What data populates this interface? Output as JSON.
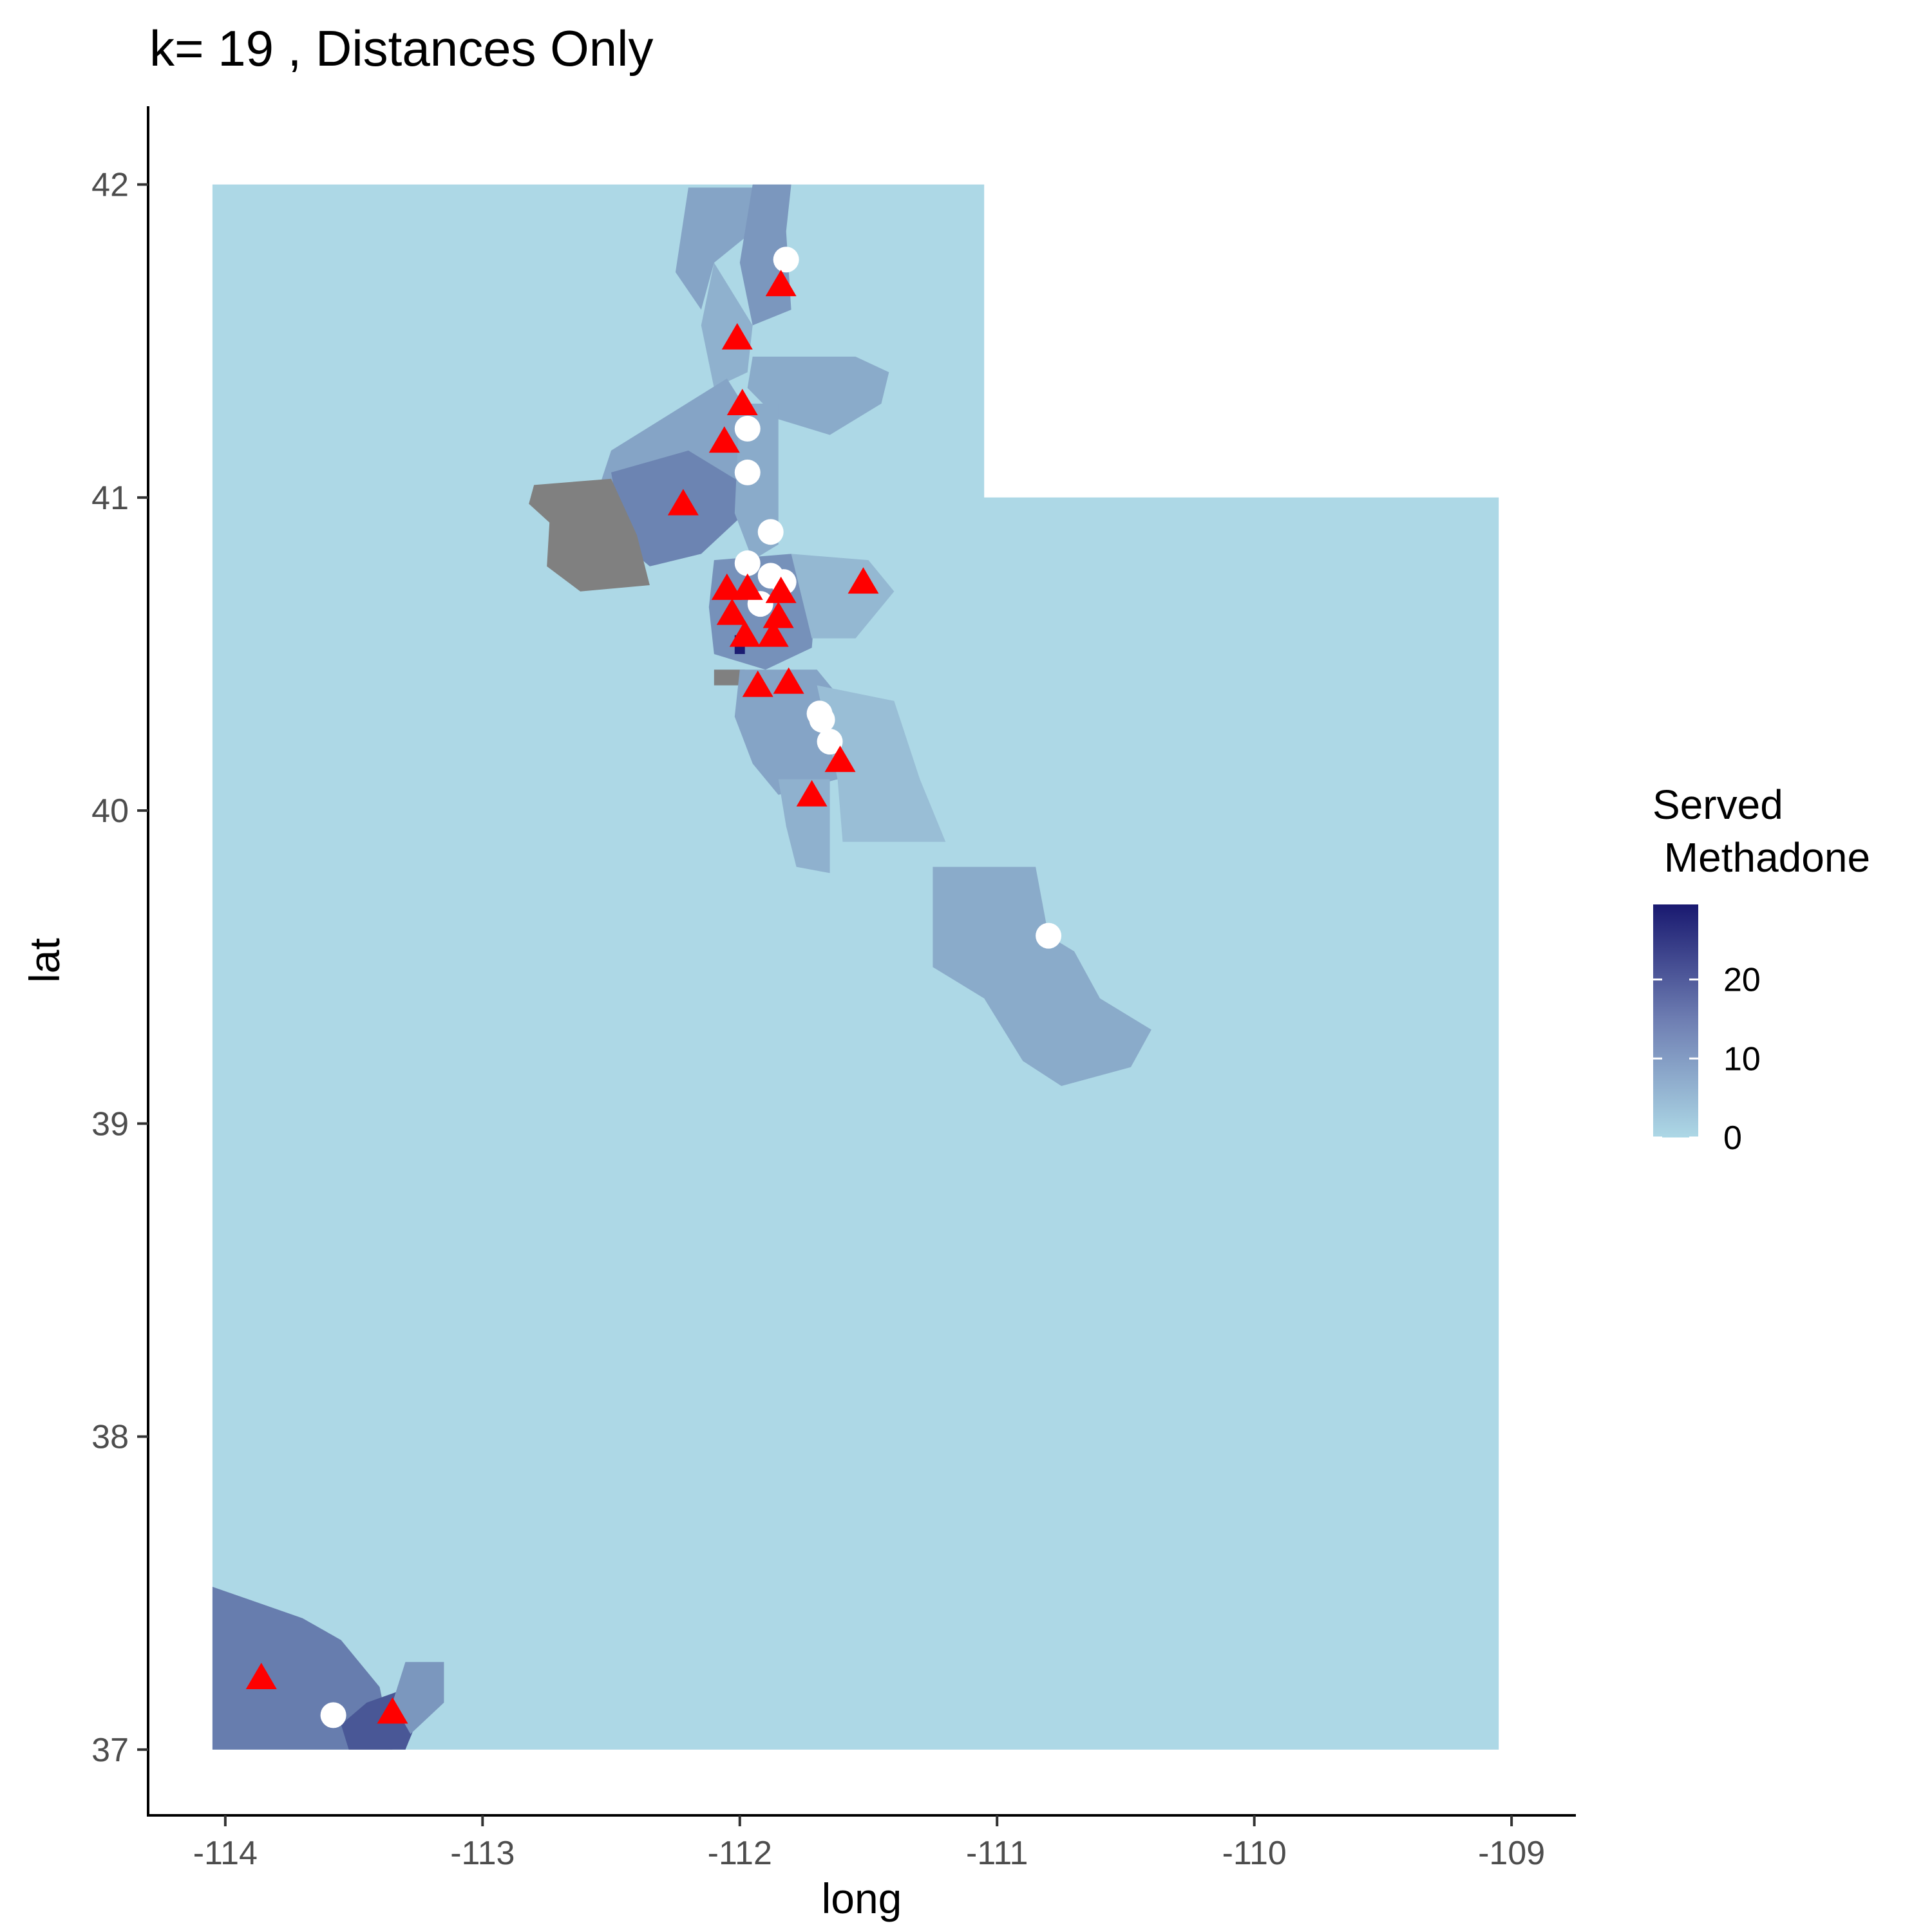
{
  "chart_data": {
    "type": "map",
    "title": "k= 19 , Distances Only",
    "xlabel": "long",
    "ylabel": "lat",
    "xlim": [
      -114.3,
      -108.75
    ],
    "ylim": [
      36.79,
      42.25
    ],
    "x_ticks": [
      -114,
      -113,
      -112,
      -111,
      -110,
      -109
    ],
    "y_ticks": [
      37,
      38,
      39,
      40,
      41,
      42
    ],
    "x_tick_labels": [
      "-114",
      "-113",
      "-112",
      "-111",
      "-110",
      "-109"
    ],
    "y_tick_labels": [
      "37",
      "38",
      "39",
      "40",
      "41",
      "42"
    ],
    "legend": {
      "title_line1": "Served",
      "title_line2": " Methadone",
      "low_color": "#add8e6",
      "high_color": "#191970",
      "na_color": "#808080",
      "range": [
        0,
        29.5
      ],
      "breaks": [
        0,
        10,
        20
      ],
      "break_labels": [
        "0",
        "10",
        "20"
      ],
      "position": "right"
    },
    "state_outline": [
      [
        -114.05,
        42.0
      ],
      [
        -111.05,
        42.0
      ],
      [
        -111.05,
        41.0
      ],
      [
        -109.05,
        41.0
      ],
      [
        -109.05,
        37.0
      ],
      [
        -114.05,
        37.0
      ]
    ],
    "regions": [
      {
        "name": "box-elder-north",
        "value": 8,
        "polygon": [
          [
            -112.2,
            41.99
          ],
          [
            -111.95,
            41.99
          ],
          [
            -111.95,
            41.85
          ],
          [
            -112.1,
            41.75
          ],
          [
            -112.15,
            41.6
          ],
          [
            -112.25,
            41.72
          ]
        ]
      },
      {
        "name": "cache-valley",
        "value": 10,
        "polygon": [
          [
            -111.95,
            42.0
          ],
          [
            -111.8,
            42.0
          ],
          [
            -111.82,
            41.85
          ],
          [
            -111.8,
            41.6
          ],
          [
            -111.95,
            41.55
          ],
          [
            -112.0,
            41.75
          ]
        ]
      },
      {
        "name": "box-elder-mid",
        "value": 6,
        "polygon": [
          [
            -112.1,
            41.75
          ],
          [
            -111.95,
            41.55
          ],
          [
            -111.97,
            41.4
          ],
          [
            -112.1,
            41.35
          ],
          [
            -112.15,
            41.55
          ]
        ]
      },
      {
        "name": "rich-morgan",
        "value": 7,
        "polygon": [
          [
            -111.95,
            41.45
          ],
          [
            -111.55,
            41.45
          ],
          [
            -111.42,
            41.4
          ],
          [
            -111.45,
            41.3
          ],
          [
            -111.65,
            41.2
          ],
          [
            -111.85,
            41.25
          ],
          [
            -111.97,
            41.35
          ]
        ]
      },
      {
        "name": "west-box-elder",
        "value": 8,
        "polygon": [
          [
            -112.5,
            41.15
          ],
          [
            -112.05,
            41.38
          ],
          [
            -111.95,
            41.25
          ],
          [
            -111.97,
            41.05
          ],
          [
            -112.05,
            40.95
          ],
          [
            -112.25,
            40.85
          ],
          [
            -112.45,
            40.8
          ],
          [
            -112.6,
            40.9
          ]
        ]
      },
      {
        "name": "great-salt-lake",
        "value": 13,
        "polygon": [
          [
            -112.5,
            41.08
          ],
          [
            -112.2,
            41.15
          ],
          [
            -112.0,
            41.05
          ],
          [
            -111.98,
            40.95
          ],
          [
            -112.15,
            40.82
          ],
          [
            -112.35,
            40.78
          ],
          [
            -112.45,
            40.85
          ]
        ]
      },
      {
        "name": "grey-unknown",
        "value": null,
        "polygon": [
          [
            -112.8,
            41.04
          ],
          [
            -112.5,
            41.06
          ],
          [
            -112.4,
            40.88
          ],
          [
            -112.35,
            40.72
          ],
          [
            -112.62,
            40.7
          ],
          [
            -112.75,
            40.78
          ],
          [
            -112.74,
            40.92
          ],
          [
            -112.82,
            40.98
          ]
        ]
      },
      {
        "name": "davis-weber",
        "value": 7,
        "polygon": [
          [
            -112.0,
            41.3
          ],
          [
            -111.85,
            41.3
          ],
          [
            -111.85,
            40.85
          ],
          [
            -111.95,
            40.8
          ],
          [
            -112.02,
            40.95
          ]
        ]
      },
      {
        "name": "salt-lake-core",
        "value": 11,
        "polygon": [
          [
            -112.1,
            40.8
          ],
          [
            -111.8,
            40.82
          ],
          [
            -111.7,
            40.72
          ],
          [
            -111.72,
            40.52
          ],
          [
            -111.9,
            40.45
          ],
          [
            -112.1,
            40.5
          ],
          [
            -112.12,
            40.65
          ]
        ]
      },
      {
        "name": "summit-east",
        "value": 5,
        "polygon": [
          [
            -111.8,
            40.82
          ],
          [
            -111.5,
            40.8
          ],
          [
            -111.4,
            40.7
          ],
          [
            -111.55,
            40.55
          ],
          [
            -111.72,
            40.55
          ]
        ]
      },
      {
        "name": "herriman-dark",
        "value": 29,
        "polygon": [
          [
            -112.02,
            40.56
          ],
          [
            -111.98,
            40.56
          ],
          [
            -111.98,
            40.5
          ],
          [
            -112.02,
            40.5
          ]
        ]
      },
      {
        "name": "grey-small",
        "value": null,
        "polygon": [
          [
            -112.1,
            40.45
          ],
          [
            -111.98,
            40.45
          ],
          [
            -111.98,
            40.4
          ],
          [
            -112.1,
            40.4
          ]
        ]
      },
      {
        "name": "utah-county-north",
        "value": 8,
        "polygon": [
          [
            -112.0,
            40.45
          ],
          [
            -111.7,
            40.45
          ],
          [
            -111.6,
            40.35
          ],
          [
            -111.62,
            40.1
          ],
          [
            -111.85,
            40.05
          ],
          [
            -111.95,
            40.15
          ],
          [
            -112.02,
            40.3
          ]
        ]
      },
      {
        "name": "wasatch",
        "value": 4,
        "polygon": [
          [
            -111.7,
            40.4
          ],
          [
            -111.4,
            40.35
          ],
          [
            -111.3,
            40.1
          ],
          [
            -111.2,
            39.9
          ],
          [
            -111.6,
            39.9
          ],
          [
            -111.62,
            40.1
          ]
        ]
      },
      {
        "name": "utah-county-south",
        "value": 6,
        "polygon": [
          [
            -111.85,
            40.1
          ],
          [
            -111.65,
            40.1
          ],
          [
            -111.65,
            39.8
          ],
          [
            -111.78,
            39.82
          ],
          [
            -111.82,
            39.95
          ]
        ]
      },
      {
        "name": "carbon-emery",
        "value": 7,
        "polygon": [
          [
            -111.25,
            39.82
          ],
          [
            -110.85,
            39.82
          ],
          [
            -110.8,
            39.6
          ],
          [
            -110.7,
            39.55
          ],
          [
            -110.6,
            39.4
          ],
          [
            -110.4,
            39.3
          ],
          [
            -110.48,
            39.18
          ],
          [
            -110.75,
            39.12
          ],
          [
            -110.9,
            39.2
          ],
          [
            -111.05,
            39.4
          ],
          [
            -111.25,
            39.5
          ]
        ]
      },
      {
        "name": "washington-west",
        "value": 14,
        "polygon": [
          [
            -114.05,
            37.52
          ],
          [
            -113.7,
            37.42
          ],
          [
            -113.55,
            37.35
          ],
          [
            -113.4,
            37.2
          ],
          [
            -113.35,
            37.0
          ],
          [
            -114.05,
            37.0
          ]
        ]
      },
      {
        "name": "st-george",
        "value": 20,
        "polygon": [
          [
            -113.45,
            37.15
          ],
          [
            -113.28,
            37.2
          ],
          [
            -113.25,
            37.1
          ],
          [
            -113.3,
            37.0
          ],
          [
            -113.52,
            37.0
          ],
          [
            -113.55,
            37.08
          ]
        ]
      },
      {
        "name": "hurricane",
        "value": 10,
        "polygon": [
          [
            -113.3,
            37.28
          ],
          [
            -113.15,
            37.28
          ],
          [
            -113.15,
            37.15
          ],
          [
            -113.28,
            37.05
          ],
          [
            -113.35,
            37.15
          ]
        ]
      }
    ],
    "series": [
      {
        "shape": "circle",
        "color": "#ffffff",
        "points": [
          [
            -111.82,
            41.76
          ],
          [
            -111.97,
            41.22
          ],
          [
            -111.97,
            41.08
          ],
          [
            -111.88,
            40.89
          ],
          [
            -111.97,
            40.79
          ],
          [
            -111.88,
            40.75
          ],
          [
            -111.83,
            40.73
          ],
          [
            -111.92,
            40.66
          ],
          [
            -111.69,
            40.31
          ],
          [
            -111.68,
            40.29
          ],
          [
            -111.65,
            40.22
          ],
          [
            -110.8,
            39.6
          ],
          [
            -113.58,
            37.11
          ]
        ]
      },
      {
        "shape": "triangle",
        "color": "#ff0000",
        "points": [
          [
            -111.84,
            41.68
          ],
          [
            -112.01,
            41.51
          ],
          [
            -111.99,
            41.3
          ],
          [
            -112.06,
            41.18
          ],
          [
            -112.22,
            40.98
          ],
          [
            -112.05,
            40.71
          ],
          [
            -111.97,
            40.71
          ],
          [
            -111.84,
            40.7
          ],
          [
            -112.03,
            40.63
          ],
          [
            -111.85,
            40.62
          ],
          [
            -111.98,
            40.56
          ],
          [
            -111.87,
            40.56
          ],
          [
            -111.93,
            40.4
          ],
          [
            -111.81,
            40.41
          ],
          [
            -111.61,
            40.16
          ],
          [
            -111.72,
            40.05
          ],
          [
            -111.52,
            40.73
          ],
          [
            -113.86,
            37.23
          ],
          [
            -113.35,
            37.12
          ]
        ]
      }
    ]
  }
}
